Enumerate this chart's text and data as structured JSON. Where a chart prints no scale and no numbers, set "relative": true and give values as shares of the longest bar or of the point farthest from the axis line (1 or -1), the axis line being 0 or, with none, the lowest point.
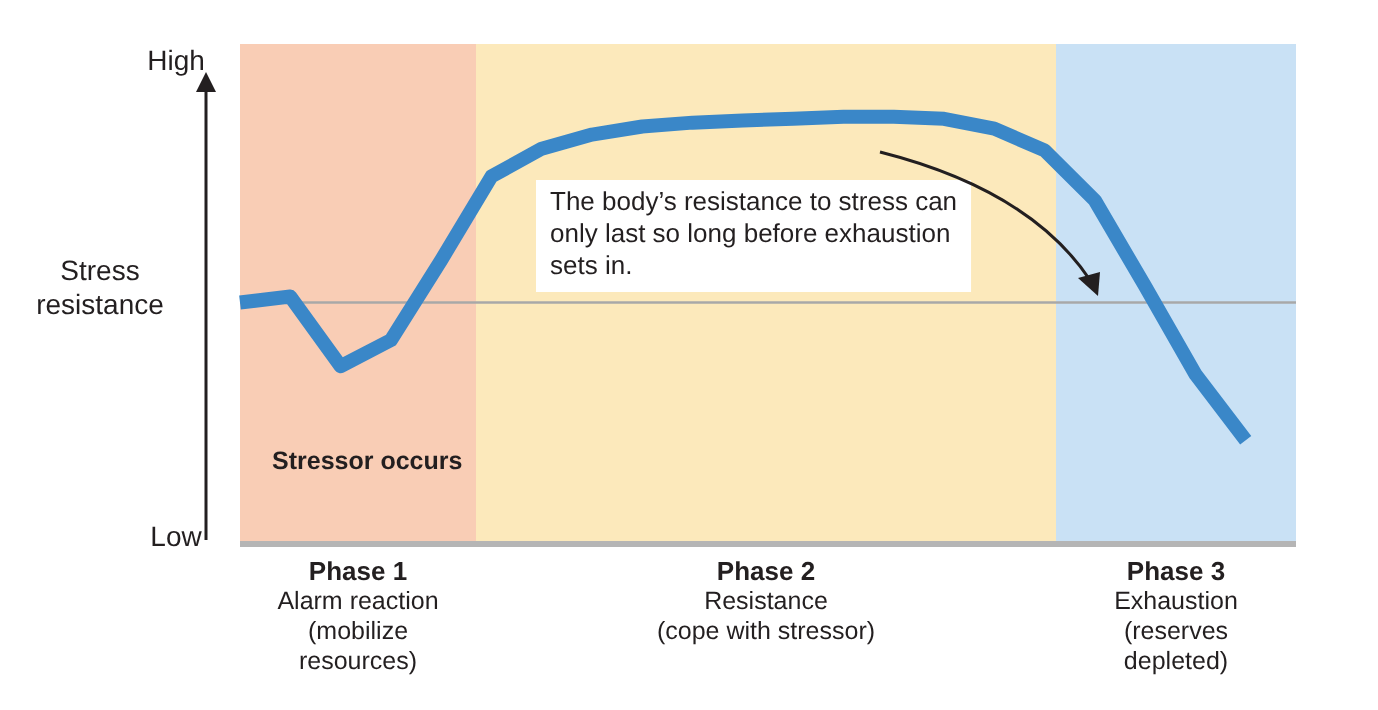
{
  "chart_data": {
    "type": "line",
    "relative": true,
    "ylabel": "Stress resistance",
    "tick_labels": false,
    "legend": false,
    "marker": "none",
    "line_style": "solid",
    "categories": [
      null,
      null,
      null,
      null,
      null,
      null,
      null,
      null,
      null,
      null,
      null,
      null,
      null,
      null,
      null,
      null,
      null,
      null,
      null,
      null,
      null,
      null
    ],
    "series": [
      {
        "color": "#3a87c8",
        "values": [
          0.565,
          0.579,
          0.416,
          0.477,
          0.664,
          0.86,
          0.925,
          0.958,
          0.977,
          0.986,
          0.991,
          0.995,
          1,
          1,
          0.995,
          0.972,
          0.921,
          0.804,
          0.603,
          0.397,
          0.243,
          null
        ]
      }
    ],
    "ref_lines": [
      {
        "axis": "y",
        "value": 0.565,
        "color": "#a8a8a8"
      }
    ],
    "annotations": [
      "High",
      "Low",
      "Stressor occurs",
      "The body’s resistance to stress can only last so long before exhaustion sets in.",
      "Phase 1\nAlarm reaction\n(mobilize\nresources)",
      "Phase 2\nResistance\n(cope with stressor)",
      "Phase 3\nExhaustion\n(reserves\ndepleted)"
    ]
  }
}
